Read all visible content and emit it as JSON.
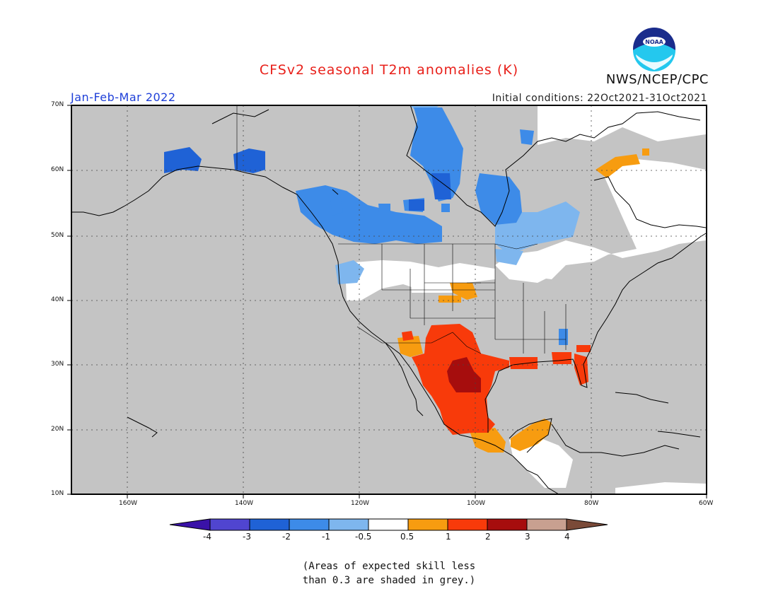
{
  "header": {
    "title": "CFSv2 seasonal T2m anomalies (K)",
    "agency": "NWS/NCEP/CPC",
    "logo_text": "NOAA",
    "season": "Jan-Feb-Mar 2022",
    "initial_conditions": "Initial conditions: 22Oct2021-31Oct2021"
  },
  "map": {
    "region": "North America",
    "lon_range": [
      -172,
      -60
    ],
    "lat_range": [
      10,
      70
    ],
    "lat_labels": [
      "70N",
      "60N",
      "50N",
      "40N",
      "30N",
      "20N",
      "10N"
    ],
    "lon_labels": [
      "160W",
      "140W",
      "120W",
      "100W",
      "80W",
      "60W"
    ],
    "grid": true,
    "colors": {
      "skill_grey": "#c4c4c4",
      "neutral": "#ffffff",
      "cold_05_1": "#7eb6ee",
      "cold_1_2": "#3d8be8",
      "cold_2_3": "#1f62d6",
      "warm_05_1": "#f79c10",
      "warm_1_2": "#f83a0a",
      "warm_2_3": "#a60d0d"
    },
    "anomaly_regions": [
      {
        "label": "Alaska west",
        "category": "-3 to -2"
      },
      {
        "label": "Alaska southeast",
        "category": "-3 to -2"
      },
      {
        "label": "Western Canada",
        "category": "-2 to -1"
      },
      {
        "label": "Northwest Territories",
        "category": "-2 to -1"
      },
      {
        "label": "Hudson Bay west",
        "category": "-2 to -1"
      },
      {
        "label": "Pacific Northwest / Northern Plains",
        "category": "-0.5 to 0.5"
      },
      {
        "label": "Southern Plains / Texas",
        "category": "1 to 2"
      },
      {
        "label": "South Texas / Northeast Mexico",
        "category": "2 to 3"
      },
      {
        "label": "Gulf Coast / Florida",
        "category": "1 to 2"
      },
      {
        "label": "Yucatan / Southern Mexico",
        "category": "0.5 to 1"
      },
      {
        "label": "Labrador / Baffin",
        "category": "-0.5 to 0.5"
      }
    ]
  },
  "colorbar": {
    "ticks": [
      "-4",
      "-3",
      "-2",
      "-1",
      "-0.5",
      "0.5",
      "1",
      "2",
      "3",
      "4"
    ],
    "colors": [
      "#3a12a8",
      "#5045d0",
      "#1f62d6",
      "#3d8be8",
      "#7eb6ee",
      "#ffffff",
      "#f79c10",
      "#f83a0a",
      "#a60d0d",
      "#c8a090",
      "#7a4a38"
    ]
  },
  "note": "(Areas of expected skill less\nthan 0.3 are shaded in grey.)"
}
